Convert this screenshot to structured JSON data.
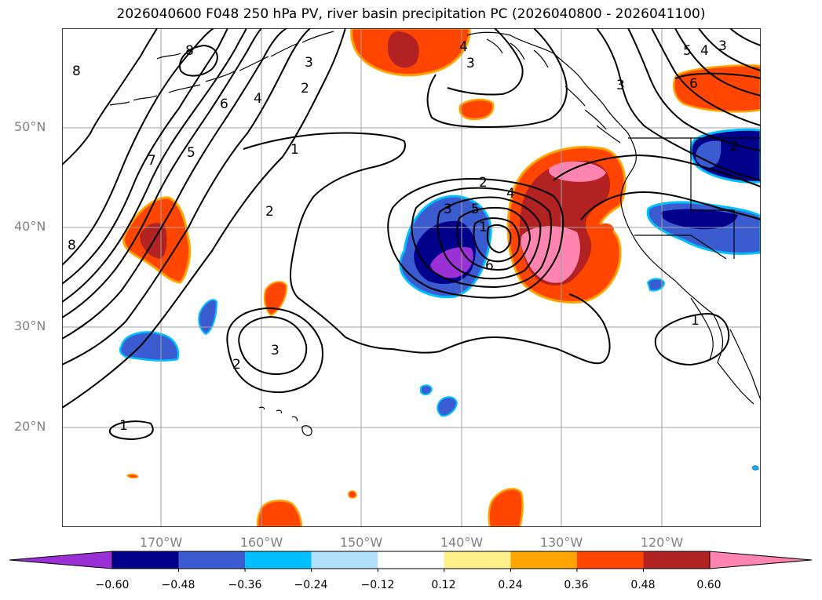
{
  "title": "2026040600 F048 250 hPa PV, river basin precipitation PC (2026040800 - 2026041100)",
  "latitude_labels": [
    "50°N",
    "40°N",
    "30°N",
    "20°N"
  ],
  "longitude_labels": [
    "170°W",
    "160°W",
    "150°W",
    "140°W",
    "130°W",
    "120°W"
  ],
  "contour_labels": [
    "8",
    "8",
    "3",
    "4",
    "3",
    "3",
    "6",
    "4",
    "2",
    "7",
    "5",
    "1",
    "1",
    "2",
    "2",
    "4",
    "3",
    "5",
    "6",
    "1",
    "8",
    "3",
    "2",
    "1",
    "5",
    "4",
    "3",
    "6",
    "2"
  ],
  "colorbar": {
    "colors": [
      "#9b30d6",
      "#00008b",
      "#3b5bd0",
      "#00bfff",
      "#b0e0fa",
      "#ffffff",
      "#fff08a",
      "#ffa500",
      "#ff4500",
      "#b22222",
      "#ff85b0",
      "#ff85b0"
    ],
    "tick_labels": [
      "−0.60",
      "−0.48",
      "−0.36",
      "−0.24",
      "−0.12",
      "0.12",
      "0.24",
      "0.36",
      "0.48",
      "0.60"
    ]
  }
}
